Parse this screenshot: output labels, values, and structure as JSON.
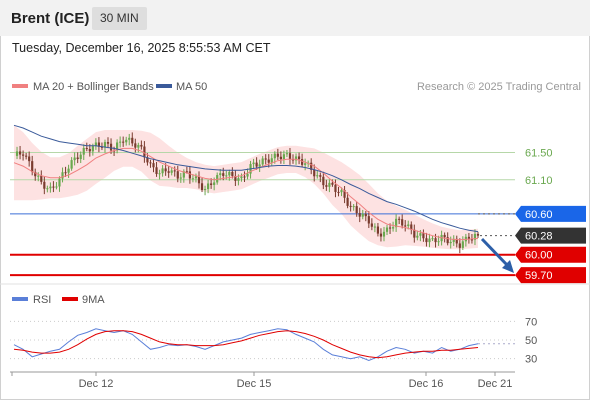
{
  "header": {
    "instrument": "Brent (ICE)",
    "timeframe": "30 MIN",
    "timestamp": "Tuesday, December 16, 2025 8:55:53 AM CET"
  },
  "legend": {
    "ma20": "MA 20 + Bollinger Bands",
    "ma50": "MA 50",
    "copyright": "Research © 2025 Trading Central"
  },
  "colors": {
    "ma20": "#f08080",
    "bollinger_band": "#fde2e2",
    "ma50": "#3a5a9a",
    "up_candle": "#6aa84f",
    "down_candle": "#7a3b2e",
    "resistance": "#b6d7a8",
    "pivot": "#3b6fd8",
    "support": "#e00000",
    "last_price": "#333333",
    "rsi": "#5a7fd8",
    "rsi_ma": "#e00000"
  },
  "chart_data": [
    {
      "type": "candlestick",
      "series": [
        {
          "name": "MA 20 + Bollinger Bands"
        },
        {
          "name": "MA 50"
        }
      ],
      "levels": [
        {
          "label": "61.50",
          "value": 61.5,
          "kind": "resistance"
        },
        {
          "label": "61.10",
          "value": 61.1,
          "kind": "resistance"
        },
        {
          "label": "60.60",
          "value": 60.6,
          "kind": "pivot"
        },
        {
          "label": "60.28",
          "value": 60.28,
          "kind": "last"
        },
        {
          "label": "60.00",
          "value": 60.0,
          "kind": "support"
        },
        {
          "label": "59.70",
          "value": 59.7,
          "kind": "support"
        }
      ],
      "x_ticks": [
        "Dec 12",
        "Dec 15",
        "Dec 16",
        "Dec 21"
      ],
      "ylim": [
        59.6,
        62.3
      ],
      "price_path": [
        61.45,
        61.5,
        61.25,
        61.05,
        60.95,
        61.1,
        61.3,
        61.45,
        61.55,
        61.6,
        61.62,
        61.55,
        61.7,
        61.65,
        61.55,
        61.3,
        61.2,
        61.25,
        61.15,
        61.2,
        61.1,
        60.95,
        61.1,
        61.2,
        61.15,
        61.1,
        61.3,
        61.35,
        61.4,
        61.45,
        61.45,
        61.4,
        61.35,
        61.2,
        61.05,
        61.0,
        60.9,
        60.7,
        60.6,
        60.5,
        60.3,
        60.35,
        60.5,
        60.45,
        60.3,
        60.25,
        60.2,
        60.25,
        60.2,
        60.15,
        60.25,
        60.28
      ],
      "ma20_path": [
        61.35,
        61.3,
        61.22,
        61.16,
        61.13,
        61.13,
        61.17,
        61.24,
        61.32,
        61.42,
        61.48,
        61.53,
        61.56,
        61.56,
        61.52,
        61.44,
        61.36,
        61.3,
        61.24,
        61.2,
        61.16,
        61.12,
        61.1,
        61.12,
        61.14,
        61.16,
        61.22,
        61.28,
        61.33,
        61.38,
        61.4,
        61.4,
        61.36,
        61.3,
        61.2,
        61.08,
        60.98,
        60.85,
        60.74,
        60.62,
        60.52,
        60.45,
        60.42,
        60.4,
        60.36,
        60.32,
        60.28,
        60.25,
        60.23,
        60.22,
        60.23,
        60.24
      ],
      "ma50_path": [
        61.9,
        61.86,
        61.8,
        61.74,
        61.7,
        61.66,
        61.64,
        61.62,
        61.6,
        61.6,
        61.58,
        61.56,
        61.53,
        61.49,
        61.45,
        61.41,
        61.38,
        61.35,
        61.32,
        61.3,
        61.28,
        61.26,
        61.25,
        61.24,
        61.24,
        61.24,
        61.26,
        61.28,
        61.3,
        61.31,
        61.31,
        61.3,
        61.28,
        61.25,
        61.21,
        61.16,
        61.1,
        61.03,
        60.97,
        60.9,
        60.84,
        60.78,
        60.74,
        60.69,
        60.64,
        60.58,
        60.52,
        60.47,
        60.43,
        60.39,
        60.36,
        60.34
      ],
      "band_width": [
        0.55,
        0.5,
        0.42,
        0.35,
        0.3,
        0.3,
        0.32,
        0.36,
        0.38,
        0.38,
        0.35,
        0.3,
        0.27,
        0.27,
        0.3,
        0.35,
        0.35,
        0.3,
        0.26,
        0.22,
        0.2,
        0.2,
        0.2,
        0.2,
        0.2,
        0.2,
        0.2,
        0.2,
        0.2,
        0.2,
        0.2,
        0.2,
        0.22,
        0.26,
        0.3,
        0.35,
        0.38,
        0.42,
        0.43,
        0.42,
        0.38,
        0.34,
        0.3,
        0.26,
        0.23,
        0.2,
        0.18,
        0.16,
        0.15,
        0.14,
        0.14,
        0.14
      ]
    },
    {
      "type": "line",
      "series": [
        {
          "name": "RSI",
          "values": [
            45,
            40,
            32,
            35,
            38,
            40,
            48,
            55,
            58,
            62,
            60,
            58,
            60,
            56,
            48,
            40,
            42,
            45,
            44,
            45,
            43,
            40,
            44,
            48,
            50,
            52,
            56,
            58,
            60,
            62,
            61,
            56,
            52,
            48,
            40,
            34,
            32,
            30,
            32,
            28,
            32,
            38,
            42,
            40,
            36,
            38,
            36,
            42,
            38,
            40,
            44,
            46
          ]
        },
        {
          "name": "9MA",
          "values": [
            40,
            39,
            37,
            36,
            36,
            37,
            40,
            45,
            51,
            56,
            59,
            60,
            60,
            59,
            56,
            52,
            48,
            46,
            45,
            45,
            44,
            44,
            44,
            45,
            47,
            49,
            52,
            55,
            57,
            59,
            60,
            59,
            57,
            54,
            50,
            45,
            41,
            37,
            34,
            32,
            31,
            32,
            34,
            36,
            37,
            38,
            38,
            39,
            39,
            40,
            41,
            42
          ]
        }
      ],
      "y_ticks": [
        30,
        50,
        70
      ],
      "ylim": [
        20,
        80
      ]
    }
  ]
}
